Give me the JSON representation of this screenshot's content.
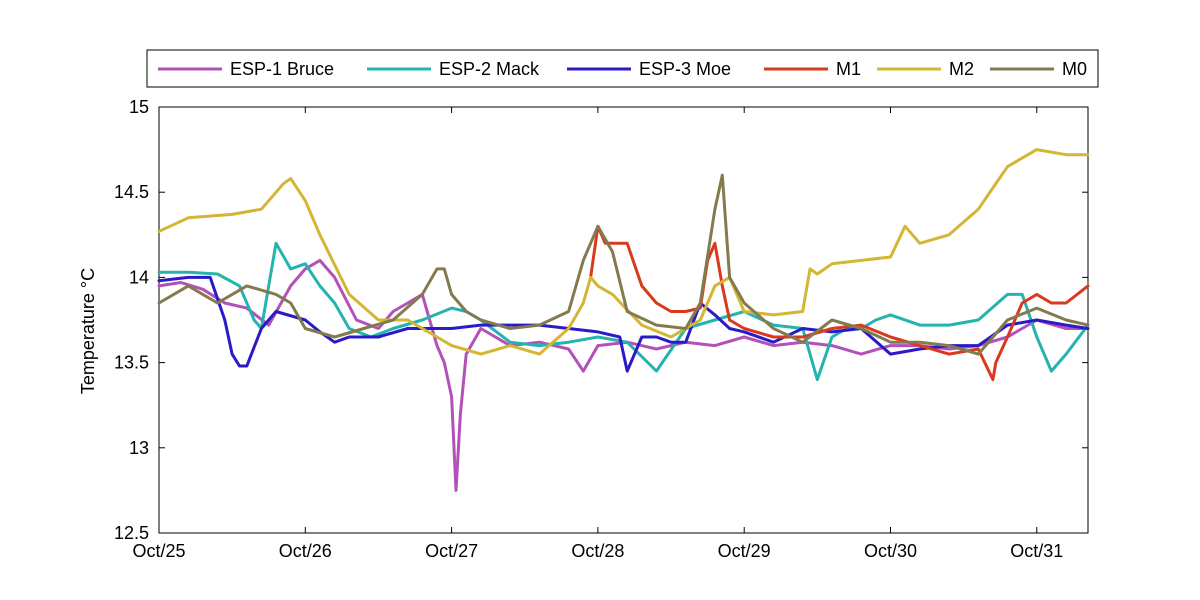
{
  "chart_data": {
    "type": "line",
    "title": "",
    "xlabel": "",
    "ylabel": "Temperature °C",
    "xlim": [
      "2012-10-25",
      "2012-10-31 08:00"
    ],
    "ylim": [
      12.5,
      15
    ],
    "x_ticks": [
      "Oct/25",
      "Oct/26",
      "Oct/27",
      "Oct/28",
      "Oct/29",
      "Oct/30",
      "Oct/31"
    ],
    "y_ticks": [
      "12.5",
      "13",
      "13.5",
      "14",
      "14.5",
      "15"
    ],
    "grid": false,
    "legend_position": "top, horizontal, outside plot area",
    "x_units": "days since Oct/25 00:00",
    "series": [
      {
        "name": "ESP-1 Bruce",
        "color": "#b351b9",
        "x": [
          0,
          0.15,
          0.3,
          0.45,
          0.6,
          0.75,
          0.9,
          1.0,
          1.1,
          1.2,
          1.35,
          1.5,
          1.6,
          1.7,
          1.8,
          1.9,
          1.95,
          2.0,
          2.03,
          2.06,
          2.1,
          2.2,
          2.4,
          2.6,
          2.8,
          2.9,
          3.0,
          3.2,
          3.4,
          3.6,
          3.8,
          4.0,
          4.2,
          4.4,
          4.6,
          4.8,
          5.0,
          5.2,
          5.4,
          5.6,
          5.8,
          6.0,
          6.2,
          6.35
        ],
        "values": [
          13.95,
          13.97,
          13.93,
          13.85,
          13.82,
          13.72,
          13.95,
          14.05,
          14.1,
          14.0,
          13.75,
          13.7,
          13.8,
          13.85,
          13.9,
          13.6,
          13.5,
          13.3,
          12.75,
          13.2,
          13.55,
          13.7,
          13.6,
          13.62,
          13.58,
          13.45,
          13.6,
          13.62,
          13.58,
          13.62,
          13.6,
          13.65,
          13.6,
          13.62,
          13.6,
          13.55,
          13.6,
          13.6,
          13.58,
          13.6,
          13.65,
          13.75,
          13.7,
          13.7
        ]
      },
      {
        "name": "ESP-2 Mack",
        "color": "#25b3b0",
        "x": [
          0,
          0.2,
          0.4,
          0.55,
          0.65,
          0.7,
          0.8,
          0.9,
          1.0,
          1.1,
          1.2,
          1.3,
          1.45,
          1.6,
          1.8,
          2.0,
          2.1,
          2.2,
          2.4,
          2.6,
          2.8,
          3.0,
          3.2,
          3.4,
          3.6,
          3.8,
          4.0,
          4.2,
          4.4,
          4.5,
          4.6,
          4.7,
          4.8,
          4.9,
          5.0,
          5.2,
          5.4,
          5.6,
          5.8,
          5.9,
          6.0,
          6.1,
          6.2,
          6.35
        ],
        "values": [
          14.03,
          14.03,
          14.02,
          13.95,
          13.75,
          13.7,
          14.2,
          14.05,
          14.08,
          13.95,
          13.85,
          13.7,
          13.65,
          13.7,
          13.75,
          13.82,
          13.8,
          13.75,
          13.62,
          13.6,
          13.62,
          13.65,
          13.62,
          13.45,
          13.7,
          13.75,
          13.8,
          13.72,
          13.7,
          13.4,
          13.65,
          13.7,
          13.7,
          13.75,
          13.78,
          13.72,
          13.72,
          13.75,
          13.9,
          13.9,
          13.65,
          13.45,
          13.55,
          13.72
        ]
      },
      {
        "name": "ESP-3 Moe",
        "color": "#2b1ac7",
        "x": [
          0,
          0.2,
          0.35,
          0.45,
          0.5,
          0.55,
          0.6,
          0.7,
          0.8,
          1.0,
          1.1,
          1.2,
          1.3,
          1.5,
          1.7,
          1.9,
          2.0,
          2.2,
          2.4,
          2.6,
          2.8,
          3.0,
          3.15,
          3.2,
          3.3,
          3.4,
          3.5,
          3.6,
          3.7,
          3.8,
          3.9,
          4.0,
          4.2,
          4.4,
          4.6,
          4.8,
          5.0,
          5.2,
          5.4,
          5.6,
          5.8,
          6.0,
          6.2,
          6.35
        ],
        "values": [
          13.98,
          14.0,
          14.0,
          13.75,
          13.55,
          13.48,
          13.48,
          13.7,
          13.8,
          13.75,
          13.68,
          13.62,
          13.65,
          13.65,
          13.7,
          13.7,
          13.7,
          13.72,
          13.72,
          13.72,
          13.7,
          13.68,
          13.65,
          13.45,
          13.65,
          13.65,
          13.62,
          13.62,
          13.85,
          13.78,
          13.7,
          13.68,
          13.62,
          13.7,
          13.68,
          13.7,
          13.55,
          13.58,
          13.6,
          13.6,
          13.72,
          13.75,
          13.72,
          13.7
        ]
      },
      {
        "name": "M1",
        "color": "#d93a1e",
        "x": [
          2.95,
          3.0,
          3.05,
          3.1,
          3.2,
          3.3,
          3.4,
          3.5,
          3.6,
          3.7,
          3.75,
          3.8,
          3.85,
          3.9,
          4.0,
          4.2,
          4.4,
          4.6,
          4.8,
          5.0,
          5.2,
          5.4,
          5.6,
          5.7,
          5.72,
          5.8,
          5.9,
          6.0,
          6.1,
          6.2,
          6.35
        ],
        "values": [
          14.0,
          14.3,
          14.2,
          14.2,
          14.2,
          13.95,
          13.85,
          13.8,
          13.8,
          13.82,
          14.1,
          14.2,
          13.95,
          13.75,
          13.7,
          13.65,
          13.65,
          13.7,
          13.72,
          13.65,
          13.6,
          13.55,
          13.58,
          13.4,
          13.5,
          13.65,
          13.85,
          13.9,
          13.85,
          13.85,
          13.95
        ]
      },
      {
        "name": "M2",
        "color": "#d4b534",
        "x": [
          0,
          0.2,
          0.5,
          0.7,
          0.85,
          0.9,
          1.0,
          1.1,
          1.3,
          1.5,
          1.7,
          1.9,
          2.0,
          2.2,
          2.4,
          2.6,
          2.8,
          2.9,
          2.95,
          3.0,
          3.1,
          3.3,
          3.5,
          3.7,
          3.8,
          3.9,
          4.0,
          4.2,
          4.4,
          4.45,
          4.5,
          4.6,
          4.8,
          5.0,
          5.1,
          5.2,
          5.4,
          5.6,
          5.8,
          6.0,
          6.2,
          6.35
        ],
        "values": [
          14.27,
          14.35,
          14.37,
          14.4,
          14.55,
          14.58,
          14.45,
          14.25,
          13.9,
          13.75,
          13.75,
          13.65,
          13.6,
          13.55,
          13.6,
          13.55,
          13.7,
          13.85,
          14.0,
          13.95,
          13.9,
          13.72,
          13.65,
          13.75,
          13.95,
          14.0,
          13.8,
          13.78,
          13.8,
          14.05,
          14.02,
          14.08,
          14.1,
          14.12,
          14.3,
          14.2,
          14.25,
          14.4,
          14.65,
          14.75,
          14.72,
          14.72
        ]
      },
      {
        "name": "M0",
        "color": "#837a4d",
        "x": [
          0,
          0.2,
          0.4,
          0.6,
          0.8,
          0.9,
          1.0,
          1.2,
          1.4,
          1.6,
          1.8,
          1.9,
          1.95,
          2.0,
          2.1,
          2.2,
          2.4,
          2.6,
          2.8,
          2.9,
          3.0,
          3.1,
          3.2,
          3.4,
          3.6,
          3.7,
          3.8,
          3.85,
          3.9,
          4.0,
          4.2,
          4.4,
          4.6,
          4.8,
          5.0,
          5.2,
          5.4,
          5.6,
          5.8,
          6.0,
          6.2,
          6.35
        ],
        "values": [
          13.85,
          13.95,
          13.85,
          13.95,
          13.9,
          13.85,
          13.7,
          13.65,
          13.7,
          13.75,
          13.9,
          14.05,
          14.05,
          13.9,
          13.8,
          13.75,
          13.7,
          13.72,
          13.8,
          14.1,
          14.3,
          14.15,
          13.8,
          13.72,
          13.7,
          13.85,
          14.4,
          14.6,
          14.0,
          13.85,
          13.7,
          13.62,
          13.75,
          13.7,
          13.62,
          13.62,
          13.6,
          13.55,
          13.75,
          13.82,
          13.75,
          13.72
        ]
      }
    ]
  }
}
